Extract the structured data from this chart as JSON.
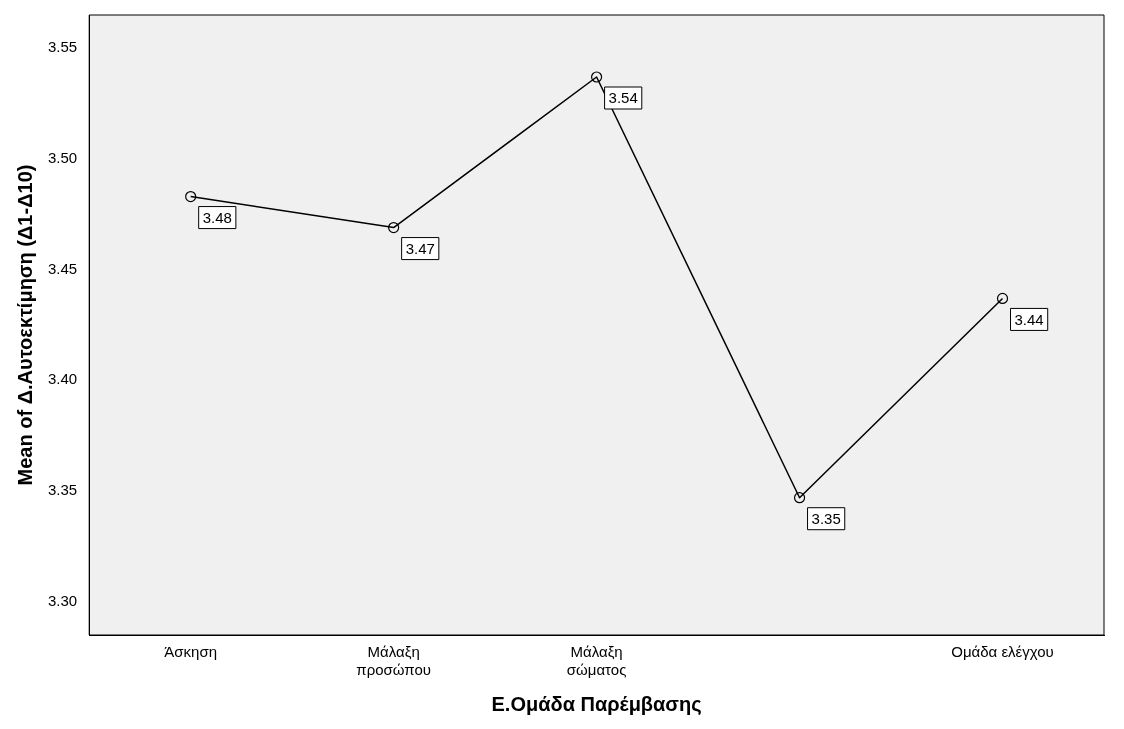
{
  "chart_data": {
    "type": "line",
    "xlabel": "Ε.Ομάδα Παρέμβασης",
    "ylabel": "Mean of Δ.Αυτοεκτίμηση (Δ1-Δ10)",
    "categories": [
      "Άσκηση",
      "Μάλαξη\nπροσώπου",
      "Μάλαξη\nσώματος",
      null,
      "Ομάδα ελέγχου"
    ],
    "series": [
      {
        "color": "#000000",
        "values": [
          3.483,
          3.469,
          3.537,
          3.347,
          3.437
        ],
        "value_labels": [
          "3.48",
          "3.47",
          "3.54",
          "3.35",
          "3.44"
        ]
      }
    ],
    "ylim": [
      3.285,
      3.565
    ],
    "yticks": [
      {
        "value": 3.3,
        "label": "3.30"
      },
      3.35,
      {
        "value": 3.4,
        "label": "3.40"
      },
      3.45,
      {
        "value": 3.5,
        "label": "3.50"
      },
      3.55
    ],
    "grid": false,
    "legend": false,
    "marker": "circle",
    "line_style": "solid"
  }
}
